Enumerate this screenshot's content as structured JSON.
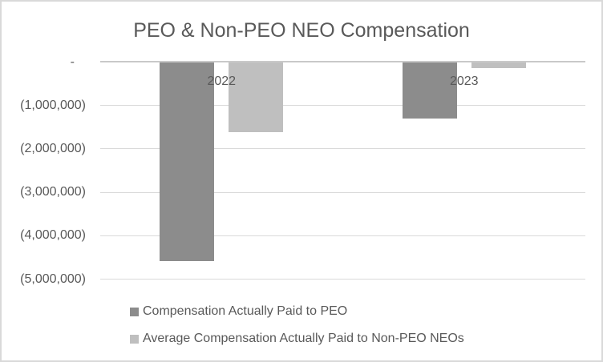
{
  "chart_data": {
    "type": "bar",
    "title": "PEO & Non-PEO NEO Compensation",
    "categories": [
      "2022",
      "2023"
    ],
    "series": [
      {
        "name": "Compensation Actually Paid to PEO",
        "color": "#8C8C8C",
        "values": [
          -4570000,
          -1300000
        ]
      },
      {
        "name": "Average Compensation Actually Paid to Non-PEO NEOs",
        "color": "#BFBFBF",
        "values": [
          -1600000,
          -130000
        ]
      }
    ],
    "ylim": [
      -5000000,
      0
    ],
    "ytick_interval": 1000000,
    "ytick_labels": [
      "-",
      "(1,000,000)",
      "(2,000,000)",
      "(3,000,000)",
      "(4,000,000)",
      "(5,000,000)"
    ],
    "grid": true,
    "legend_position": "bottom",
    "colors": {
      "text": "#595959",
      "gridline": "#D9D9D9",
      "axis_line": "#C9C9C9",
      "background": "#FFFFFF",
      "border": "#D9D9D9"
    }
  }
}
